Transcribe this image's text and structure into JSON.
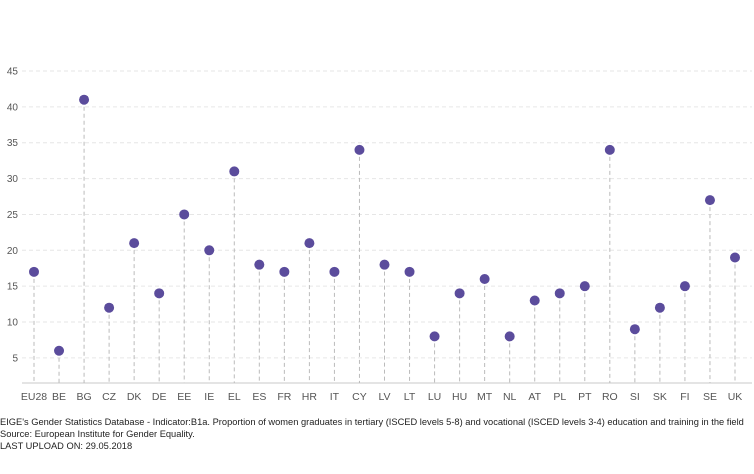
{
  "chart_data": {
    "type": "scatter",
    "style": "lollipop",
    "categories": [
      "EU28",
      "BE",
      "BG",
      "CZ",
      "DK",
      "DE",
      "EE",
      "IE",
      "EL",
      "ES",
      "FR",
      "HR",
      "IT",
      "CY",
      "LV",
      "LT",
      "LU",
      "HU",
      "MT",
      "NL",
      "AT",
      "PL",
      "PT",
      "RO",
      "SI",
      "SK",
      "FI",
      "SE",
      "UK"
    ],
    "values": [
      17,
      6,
      41,
      12,
      21,
      14,
      25,
      20,
      31,
      18,
      17,
      21,
      17,
      34,
      18,
      17,
      8,
      14,
      16,
      8,
      13,
      14,
      15,
      34,
      9,
      12,
      15,
      27,
      19
    ],
    "yticks": [
      5,
      10,
      15,
      20,
      25,
      30,
      35,
      40,
      45
    ],
    "ylim": [
      1.5,
      45
    ],
    "grid": true,
    "color": "#5b4c9c"
  },
  "footer": {
    "line1": "EIGE's Gender Statistics Database - Indicator:B1a. Proportion of women graduates in tertiary (ISCED levels 5-8) and vocational (ISCED levels 3-4) education and training in the field",
    "line2": "Source: European Institute for Gender Equality.",
    "line3": "LAST UPLOAD ON: 29.05.2018"
  }
}
